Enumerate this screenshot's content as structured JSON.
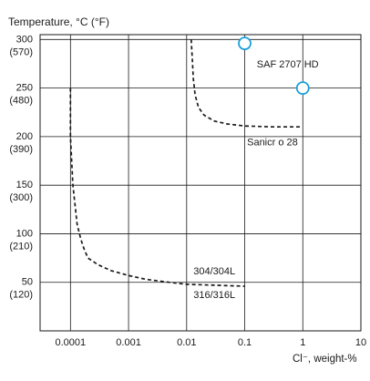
{
  "chart_data": {
    "type": "line",
    "title": "",
    "ylabel": "Temperature, °C (°F)",
    "xlabel": "Cl⁻, weight-%",
    "x_scale": "log",
    "xlim": [
      3e-05,
      10
    ],
    "ylim": [
      0,
      305
    ],
    "grid": true,
    "x_ticks": [
      {
        "value": 0.0001,
        "label": "0.0001"
      },
      {
        "value": 0.001,
        "label": "0.001"
      },
      {
        "value": 0.01,
        "label": "0.01"
      },
      {
        "value": 0.1,
        "label": "0.1"
      },
      {
        "value": 1,
        "label": "1"
      },
      {
        "value": 10,
        "label": "10"
      }
    ],
    "y_ticks": [
      {
        "value": 300,
        "label": "300",
        "label2": "(570)"
      },
      {
        "value": 250,
        "label": "250",
        "label2": "(480)"
      },
      {
        "value": 200,
        "label": "200",
        "label2": "(390)"
      },
      {
        "value": 150,
        "label": "150",
        "label2": "(300)"
      },
      {
        "value": 100,
        "label": "100",
        "label2": "(210)"
      },
      {
        "value": 50,
        "label": "50",
        "label2": "(120)"
      }
    ],
    "series": [
      {
        "name": "304/304L",
        "label2": "316/316L",
        "style": "dashed",
        "points": [
          [
            0.0001,
            250
          ],
          [
            0.0001,
            200
          ],
          [
            0.00011,
            150
          ],
          [
            0.00013,
            110
          ],
          [
            0.00015,
            95
          ],
          [
            0.00017,
            85
          ],
          [
            0.0002,
            75
          ],
          [
            0.0003,
            68
          ],
          [
            0.0005,
            62
          ],
          [
            0.001,
            57
          ],
          [
            0.002,
            53
          ],
          [
            0.005,
            50
          ],
          [
            0.01,
            48
          ],
          [
            0.03,
            47
          ],
          [
            0.1,
            46
          ]
        ]
      },
      {
        "name": "Sanicr o 28",
        "style": "dashed",
        "points": [
          [
            0.012,
            300
          ],
          [
            0.0125,
            280
          ],
          [
            0.013,
            260
          ],
          [
            0.014,
            243
          ],
          [
            0.016,
            230
          ],
          [
            0.02,
            222
          ],
          [
            0.03,
            216
          ],
          [
            0.05,
            213
          ],
          [
            0.1,
            211
          ],
          [
            0.3,
            210
          ],
          [
            1,
            210
          ]
        ]
      },
      {
        "name": "SAF 2707 HD",
        "style": "marker",
        "points": [
          [
            0.1,
            296
          ],
          [
            1,
            250
          ]
        ]
      }
    ]
  }
}
